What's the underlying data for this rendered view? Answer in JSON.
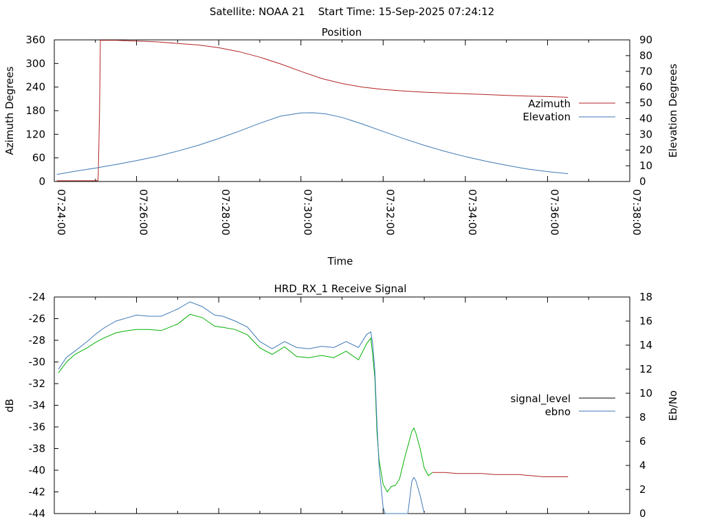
{
  "header": {
    "satellite_label": "Satellite: NOAA 21",
    "start_label": "Start Time: 15-Sep-2025 07:24:12"
  },
  "chart_data": [
    {
      "type": "line",
      "title": "Position",
      "xlabel": "Time",
      "ylabel_left": "Azimuth Degrees",
      "ylabel_right": "Elevation Degrees",
      "grid": false,
      "legend_position": "right",
      "x_ticks": [
        "07:24:00",
        "07:26:00",
        "07:28:00",
        "07:30:00",
        "07:32:00",
        "07:34:00",
        "07:36:00",
        "07:38:00"
      ],
      "xlim_minutes": [
        0,
        14
      ],
      "y_left_ticks": [
        "0",
        "60",
        "120",
        "180",
        "240",
        "300",
        "360"
      ],
      "ylim_left": [
        0,
        360
      ],
      "y_right_ticks": [
        "0",
        "10",
        "20",
        "30",
        "40",
        "50",
        "60",
        "70",
        "80",
        "90"
      ],
      "ylim_right": [
        0,
        90
      ],
      "series": [
        {
          "name": "Azimuth",
          "axis": "left",
          "color": "#b22222",
          "x": [
            0.06,
            1.06,
            1.07,
            1.1,
            1.12,
            1.16,
            1.5,
            2.0,
            2.5,
            3.0,
            3.5,
            4.0,
            4.5,
            5.0,
            5.5,
            6.0,
            6.5,
            7.0,
            7.5,
            8.0,
            8.5,
            9.0,
            9.5,
            10.0,
            10.5,
            11.0,
            11.5,
            12.0,
            12.5
          ],
          "values": [
            2,
            2,
            20,
            180,
            359,
            359,
            359,
            357,
            355,
            351,
            347,
            340,
            330,
            316,
            299,
            280,
            262,
            249,
            240,
            234,
            230,
            227,
            225,
            223,
            221,
            219,
            217,
            216,
            214
          ]
        },
        {
          "name": "Elevation",
          "axis": "right",
          "color": "#3b78b4",
          "x": [
            0.06,
            0.5,
            1.0,
            1.5,
            2.0,
            2.5,
            3.0,
            3.5,
            4.0,
            4.5,
            5.0,
            5.5,
            6.0,
            6.3,
            6.6,
            7.0,
            7.5,
            8.0,
            8.5,
            9.0,
            9.5,
            10.0,
            10.5,
            11.0,
            11.5,
            12.0,
            12.5
          ],
          "values": [
            4.5,
            6.5,
            8.5,
            10.8,
            13.3,
            16.0,
            19.3,
            23.0,
            27.3,
            32.0,
            37.0,
            41.5,
            43.6,
            43.7,
            43.0,
            40.7,
            36.5,
            31.8,
            27.2,
            23.0,
            19.2,
            15.8,
            12.9,
            10.3,
            8.0,
            6.3,
            5.0
          ]
        }
      ]
    },
    {
      "type": "line",
      "title": "HRD_RX_1 Receive Signal",
      "xlabel": "",
      "ylabel_left": "dB",
      "ylabel_right": "Eb/No",
      "grid": false,
      "legend_position": "right",
      "xlim_minutes": [
        0,
        14
      ],
      "y_left_ticks": [
        "-24",
        "-26",
        "-28",
        "-30",
        "-32",
        "-34",
        "-36",
        "-38",
        "-40",
        "-42",
        "-44"
      ],
      "ylim_left": [
        -44,
        -24
      ],
      "y_right_ticks": [
        "0",
        "2",
        "4",
        "6",
        "8",
        "10",
        "12",
        "14",
        "16",
        "18"
      ],
      "ylim_right": [
        0,
        18
      ],
      "series": [
        {
          "name": "signal_level",
          "axis": "left",
          "color": "#000000",
          "segments": [
            {
              "color": "#00b000",
              "x": [
                0.1,
                0.3,
                0.5,
                0.8,
                1.0,
                1.2,
                1.5,
                1.8,
                2.0,
                2.3,
                2.6,
                3.0,
                3.3,
                3.6,
                3.9,
                4.1,
                4.4,
                4.7,
                5.0,
                5.3,
                5.6,
                5.9,
                6.2,
                6.5,
                6.8,
                7.1,
                7.4,
                7.6,
                7.7,
                7.75,
                7.8,
                7.85,
                7.9,
                8.0,
                8.1,
                8.2,
                8.3,
                8.4,
                8.5,
                8.6,
                8.7,
                8.75,
                8.8,
                8.85,
                8.9,
                9.0,
                9.1,
                9.2
              ],
              "values": [
                -31,
                -30,
                -29.3,
                -28.7,
                -28.2,
                -27.8,
                -27.3,
                -27.1,
                -27.0,
                -27.0,
                -27.1,
                -26.5,
                -25.6,
                -25.9,
                -26.7,
                -26.8,
                -27.0,
                -27.5,
                -28.7,
                -29.3,
                -28.6,
                -29.5,
                -29.6,
                -29.4,
                -29.6,
                -29.0,
                -29.8,
                -28.3,
                -27.8,
                -29.5,
                -31.5,
                -36.5,
                -39.0,
                -41.3,
                -42.0,
                -41.5,
                -41.4,
                -40.8,
                -39.2,
                -37.8,
                -36.4,
                -36.1,
                -36.6,
                -37.3,
                -38.0,
                -39.8,
                -40.5,
                -40.2
              ]
            },
            {
              "color": "#b22222",
              "x": [
                9.2,
                9.5,
                9.8,
                10.1,
                10.4,
                10.7,
                11.0,
                11.3,
                11.6,
                11.9,
                12.2,
                12.5
              ],
              "values": [
                -40.2,
                -40.2,
                -40.3,
                -40.3,
                -40.3,
                -40.4,
                -40.4,
                -40.4,
                -40.5,
                -40.6,
                -40.6,
                -40.6
              ]
            }
          ]
        },
        {
          "name": "ebno",
          "axis": "right",
          "color": "#3b78b4",
          "x": [
            0.1,
            0.3,
            0.5,
            0.8,
            1.0,
            1.2,
            1.5,
            1.8,
            2.0,
            2.3,
            2.6,
            3.0,
            3.3,
            3.6,
            3.9,
            4.1,
            4.4,
            4.7,
            5.0,
            5.3,
            5.6,
            5.9,
            6.2,
            6.5,
            6.8,
            7.1,
            7.4,
            7.6,
            7.7,
            7.75,
            7.8,
            7.85,
            7.9,
            8.0,
            8.05,
            8.6,
            8.7,
            8.75,
            8.8,
            8.9,
            9.0
          ],
          "values": [
            12.0,
            13.0,
            13.5,
            14.3,
            14.9,
            15.4,
            16.0,
            16.3,
            16.5,
            16.4,
            16.4,
            17.0,
            17.6,
            17.2,
            16.5,
            16.4,
            16.0,
            15.5,
            14.3,
            13.7,
            14.3,
            13.8,
            13.7,
            13.9,
            13.8,
            14.3,
            13.8,
            14.9,
            15.1,
            14.0,
            11.8,
            7.5,
            4.0,
            0.5,
            0.0,
            0.0,
            2.7,
            3.0,
            2.7,
            1.5,
            0.0
          ]
        }
      ]
    }
  ]
}
